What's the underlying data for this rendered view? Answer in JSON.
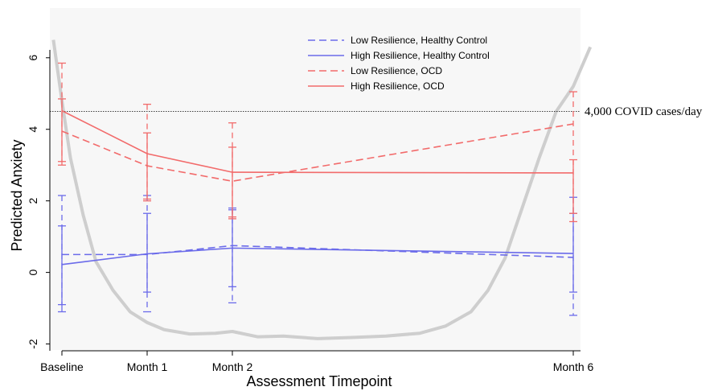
{
  "chart_data": {
    "type": "line",
    "xlabel": "Assessment Timepoint",
    "ylabel": "Predicted Anxiety",
    "categories": [
      "Baseline",
      "Month 1",
      "Month 2",
      "Month 6"
    ],
    "x_months": [
      0,
      1,
      2,
      6
    ],
    "ylim": [
      -2.1,
      6.4
    ],
    "yticks": [
      -2,
      0,
      2,
      4,
      6
    ],
    "ytick_labels": [
      "-2",
      "0",
      "2",
      "4",
      "6"
    ],
    "grid": false,
    "legend_position": "top-center",
    "series": [
      {
        "name": "Low Resilience, Healthy Control",
        "color": "#6b6bea",
        "dash": true,
        "values": [
          0.5,
          0.5,
          0.75,
          0.42
        ],
        "ci_low": [
          -0.9,
          -1.1,
          -0.85,
          -1.2
        ],
        "ci_high": [
          2.15,
          2.15,
          1.8,
          2.1
        ]
      },
      {
        "name": "High Resilience, Healthy Control",
        "color": "#6b6bea",
        "dash": false,
        "values": [
          0.22,
          0.52,
          0.68,
          0.53
        ],
        "ci_low": [
          -1.1,
          -0.55,
          -0.4,
          -0.55
        ],
        "ci_high": [
          1.3,
          1.65,
          1.75,
          1.65
        ]
      },
      {
        "name": "Low Resilience, OCD",
        "color": "#f26b6b",
        "dash": true,
        "values": [
          3.95,
          2.98,
          2.55,
          4.15
        ],
        "ci_low": [
          3.0,
          2.0,
          1.55,
          1.42
        ],
        "ci_high": [
          5.85,
          4.7,
          4.18,
          5.05
        ]
      },
      {
        "name": "High Resilience, OCD",
        "color": "#f26b6b",
        "dash": false,
        "values": [
          4.52,
          3.32,
          2.8,
          2.78
        ],
        "ci_low": [
          3.1,
          2.05,
          1.5,
          1.65
        ],
        "ci_high": [
          4.85,
          3.9,
          3.5,
          3.15
        ]
      }
    ],
    "reference_line": {
      "y": 4.5,
      "label": "4,000 COVID cases/day"
    },
    "background_covid_curve": {
      "color": "#c9c9c9",
      "x": [
        -0.1,
        0.0,
        0.1,
        0.25,
        0.4,
        0.6,
        0.8,
        1.0,
        1.2,
        1.5,
        1.8,
        2.0,
        2.3,
        2.6,
        3.0,
        3.4,
        3.8,
        4.2,
        4.5,
        4.8,
        5.0,
        5.2,
        5.4,
        5.6,
        5.8,
        6.0,
        6.2
      ],
      "y": [
        6.5,
        4.8,
        3.2,
        1.6,
        0.3,
        -0.5,
        -1.1,
        -1.4,
        -1.6,
        -1.72,
        -1.7,
        -1.65,
        -1.8,
        -1.78,
        -1.85,
        -1.82,
        -1.78,
        -1.7,
        -1.5,
        -1.1,
        -0.5,
        0.4,
        1.8,
        3.2,
        4.5,
        5.2,
        6.3
      ]
    }
  }
}
